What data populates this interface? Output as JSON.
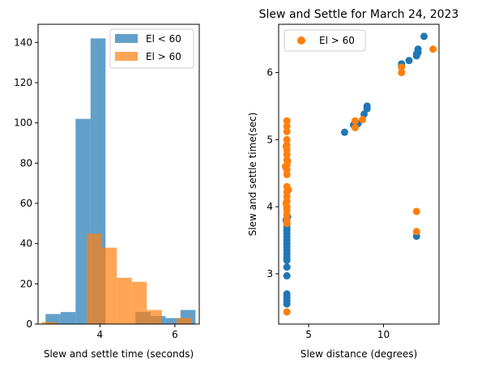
{
  "colors": {
    "el_lt_60": "#1f77b4",
    "el_gt_60": "#ff7f0e"
  },
  "chart_data": [
    {
      "type": "histogram",
      "title": "",
      "xlabel": "Slew and settle time (seconds)",
      "ylabel": "",
      "xlim": [
        2.35,
        6.65
      ],
      "ylim": [
        0,
        149
      ],
      "xticks": [
        4,
        6
      ],
      "yticks": [
        0,
        20,
        40,
        60,
        80,
        100,
        120,
        140
      ],
      "legend": {
        "placement": "top-right",
        "entries": [
          "El < 60",
          "El > 60"
        ]
      },
      "series": [
        {
          "name": "El < 60",
          "alpha": 0.7,
          "bins": [
            {
              "x0": 2.55,
              "x1": 2.95,
              "count": 5
            },
            {
              "x0": 2.95,
              "x1": 3.35,
              "count": 6
            },
            {
              "x0": 3.35,
              "x1": 3.75,
              "count": 102
            },
            {
              "x0": 3.75,
              "x1": 4.15,
              "count": 142
            },
            {
              "x0": 4.15,
              "x1": 4.55,
              "count": 0
            },
            {
              "x0": 4.55,
              "x1": 4.95,
              "count": 0
            },
            {
              "x0": 4.95,
              "x1": 5.35,
              "count": 6
            },
            {
              "x0": 5.35,
              "x1": 5.75,
              "count": 4
            },
            {
              "x0": 5.75,
              "x1": 6.15,
              "count": 3
            },
            {
              "x0": 6.15,
              "x1": 6.55,
              "count": 7
            }
          ]
        },
        {
          "name": "El > 60",
          "alpha": 0.7,
          "bins": [
            {
              "x0": 2.45,
              "x1": 2.85,
              "count": 1
            },
            {
              "x0": 3.65,
              "x1": 4.05,
              "count": 45
            },
            {
              "x0": 4.05,
              "x1": 4.45,
              "count": 38
            },
            {
              "x0": 4.45,
              "x1": 4.85,
              "count": 23
            },
            {
              "x0": 4.85,
              "x1": 5.25,
              "count": 21
            },
            {
              "x0": 5.25,
              "x1": 5.65,
              "count": 7
            },
            {
              "x0": 5.65,
              "x1": 6.05,
              "count": 0
            },
            {
              "x0": 6.05,
              "x1": 6.45,
              "count": 3
            }
          ]
        }
      ]
    },
    {
      "type": "scatter",
      "title": "Slew and Settle for March 24, 2023",
      "xlabel": "Slew distance (degrees)",
      "ylabel": "Slew and settle time(sec)",
      "xlim": [
        3.0,
        13.7
      ],
      "ylim": [
        2.25,
        6.72
      ],
      "xticks": [
        5,
        10
      ],
      "yticks": [
        3,
        4,
        5,
        6
      ],
      "legend": {
        "placement": "top-left",
        "entries": [
          "El > 60"
        ]
      },
      "series": [
        {
          "name": "",
          "color_key": "el_lt_60",
          "points": [
            [
              3.55,
              3.45
            ],
            [
              3.55,
              3.5
            ],
            [
              3.55,
              3.55
            ],
            [
              3.55,
              3.6
            ],
            [
              3.55,
              3.65
            ],
            [
              3.55,
              3.7
            ],
            [
              3.55,
              3.75
            ],
            [
              3.55,
              3.4
            ],
            [
              3.55,
              3.35
            ],
            [
              3.55,
              3.3
            ],
            [
              3.55,
              3.25
            ],
            [
              3.55,
              3.2
            ],
            [
              3.55,
              3.1
            ],
            [
              3.55,
              2.97
            ],
            [
              3.55,
              2.7
            ],
            [
              3.55,
              2.65
            ],
            [
              3.55,
              2.6
            ],
            [
              3.55,
              2.55
            ],
            [
              3.5,
              3.8
            ],
            [
              3.6,
              3.85
            ],
            [
              7.4,
              5.11
            ],
            [
              8.0,
              5.22
            ],
            [
              8.3,
              5.24
            ],
            [
              8.7,
              5.38
            ],
            [
              8.9,
              5.46
            ],
            [
              8.9,
              5.5
            ],
            [
              11.2,
              6.1
            ],
            [
              11.2,
              6.13
            ],
            [
              11.7,
              6.18
            ],
            [
              12.2,
              6.25
            ],
            [
              12.2,
              6.28
            ],
            [
              12.3,
              6.3
            ],
            [
              12.3,
              6.35
            ],
            [
              12.7,
              6.54
            ],
            [
              12.2,
              3.56
            ]
          ]
        },
        {
          "name": "El > 60",
          "color_key": "el_gt_60",
          "points": [
            [
              3.55,
              5.28
            ],
            [
              3.55,
              5.2
            ],
            [
              3.55,
              5.12
            ],
            [
              3.55,
              5.0
            ],
            [
              3.55,
              4.92
            ],
            [
              3.55,
              4.85
            ],
            [
              3.55,
              4.78
            ],
            [
              3.55,
              4.7
            ],
            [
              3.55,
              4.62
            ],
            [
              3.55,
              4.55
            ],
            [
              3.55,
              4.48
            ],
            [
              3.55,
              4.3
            ],
            [
              3.55,
              4.22
            ],
            [
              3.55,
              4.15
            ],
            [
              3.55,
              4.08
            ],
            [
              3.55,
              4.0
            ],
            [
              3.55,
              3.95
            ],
            [
              3.55,
              3.88
            ],
            [
              3.55,
              3.8
            ],
            [
              3.55,
              3.75
            ],
            [
              3.5,
              4.9
            ],
            [
              3.6,
              4.68
            ],
            [
              3.45,
              4.6
            ],
            [
              3.65,
              4.25
            ],
            [
              3.5,
              4.05
            ],
            [
              3.55,
              2.43
            ],
            [
              8.1,
              5.18
            ],
            [
              8.1,
              5.28
            ],
            [
              8.6,
              5.3
            ],
            [
              11.2,
              6.0
            ],
            [
              11.2,
              6.08
            ],
            [
              13.3,
              6.35
            ],
            [
              12.2,
              3.93
            ],
            [
              12.2,
              3.63
            ]
          ]
        }
      ]
    }
  ]
}
